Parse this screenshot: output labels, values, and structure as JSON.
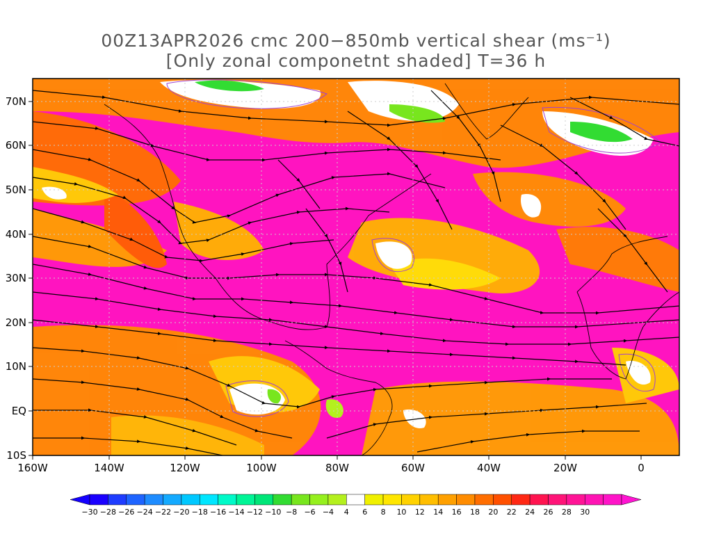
{
  "title": {
    "line1": "00Z13APR2026 cmc 200−850mb vertical shear (ms⁻¹)",
    "line2": "[Only zonal componetnt shaded] T=36 h"
  },
  "axes": {
    "lat_labels": [
      "70N",
      "60N",
      "50N",
      "40N",
      "30N",
      "20N",
      "10N",
      "EQ",
      "10S"
    ],
    "lon_labels": [
      "160W",
      "140W",
      "120W",
      "100W",
      "80W",
      "60W",
      "40W",
      "20W",
      "0"
    ]
  },
  "colorbar": {
    "labels": [
      "−30",
      "−28",
      "−26",
      "−24",
      "−22",
      "−20",
      "−18",
      "−16",
      "−14",
      "−12",
      "−10",
      "−8",
      "−6",
      "−4",
      "4",
      "6",
      "8",
      "10",
      "12",
      "14",
      "16",
      "18",
      "20",
      "22",
      "24",
      "26",
      "28",
      "30"
    ],
    "colors": [
      "#1a00ff",
      "#1e3cff",
      "#1e64ff",
      "#1e8cff",
      "#14aaff",
      "#00c8ff",
      "#00e6ff",
      "#00fac8",
      "#00f596",
      "#00e678",
      "#32dc32",
      "#78e61e",
      "#96f01e",
      "#b4f01e",
      "#ffffff",
      "#f0f000",
      "#ffe600",
      "#ffd200",
      "#ffbe00",
      "#ffa000",
      "#ff8c00",
      "#ff6e00",
      "#ff5000",
      "#ff2814",
      "#ff1450",
      "#ff1478",
      "#ff1496",
      "#ff14b4",
      "#ff14c8"
    ],
    "under_color": "#1400ff",
    "over_color": "#ff14d2"
  },
  "map": {
    "frame_lon_range": [
      -160,
      10
    ],
    "frame_lat_range": [
      -10,
      75
    ],
    "dominant_shading": "magenta",
    "streamline_color": "#000000",
    "contour_color": "#a040d0"
  }
}
